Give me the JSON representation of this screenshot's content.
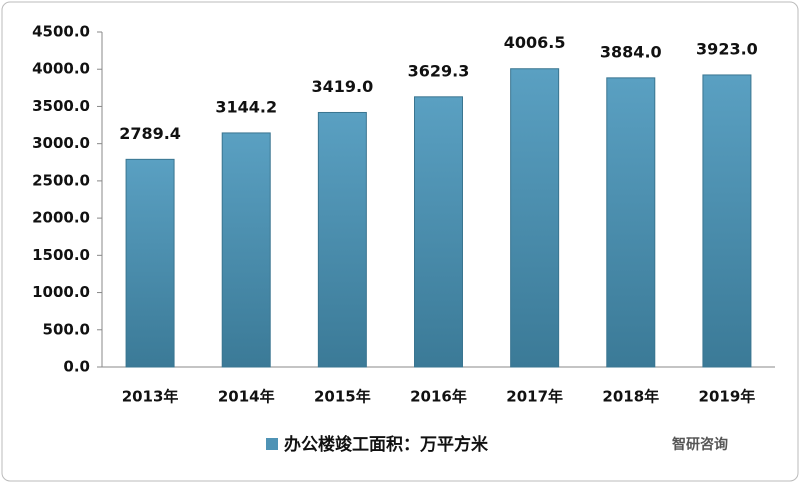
{
  "chart_data": {
    "type": "bar",
    "categories": [
      "2013年",
      "2014年",
      "2015年",
      "2016年",
      "2017年",
      "2018年",
      "2019年"
    ],
    "series": [
      {
        "name": "办公楼竣工面积：万平方米",
        "color": "#4f93b5",
        "values": [
          2789.4,
          3144.2,
          3419.0,
          3629.3,
          4006.5,
          3884.0,
          3923.0
        ],
        "value_labels": [
          "2789.4",
          "3144.2",
          "3419.0",
          "3629.3",
          "4006.5",
          "3884.0",
          "3923.0"
        ]
      }
    ],
    "ylim": [
      0,
      4500
    ],
    "yticks": [
      {
        "value": 0,
        "label": "0.0"
      },
      {
        "value": 500,
        "label": "500.0"
      },
      {
        "value": 1000,
        "label": "1000.0"
      },
      {
        "value": 1500,
        "label": "1500.0"
      },
      {
        "value": 2000,
        "label": "2000.0"
      },
      {
        "value": 2500,
        "label": "2500.0"
      },
      {
        "value": 3000,
        "label": "3000.0"
      },
      {
        "value": 3500,
        "label": "3500.0"
      },
      {
        "value": 4000,
        "label": "4000.0"
      },
      {
        "value": 4500,
        "label": "4500.0"
      }
    ],
    "grid": false,
    "legend": "bottom"
  },
  "watermark": "智研咨询"
}
